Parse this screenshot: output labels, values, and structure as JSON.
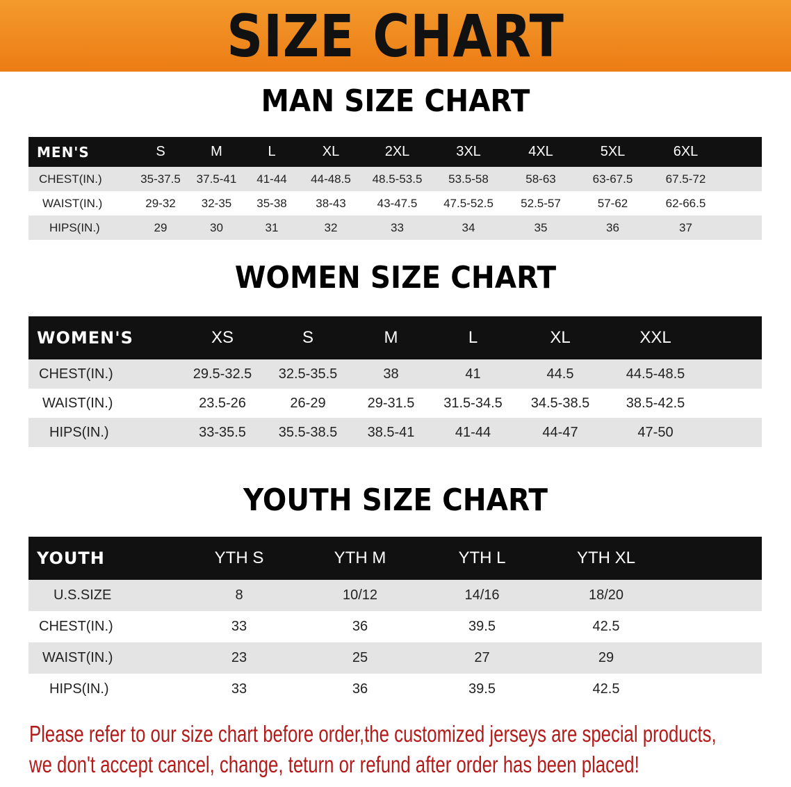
{
  "header": {
    "title": "SIZE CHART",
    "band_color": "#ee8420"
  },
  "men": {
    "title": "MAN SIZE CHART",
    "columns": [
      "MEN'S",
      "S",
      "M",
      "L",
      "XL",
      "2XL",
      "3XL",
      "4XL",
      "5XL",
      "6XL"
    ],
    "rows": [
      [
        "CHEST(IN.)",
        "35-37.5",
        "37.5-41",
        "41-44",
        "44-48.5",
        "48.5-53.5",
        "53.5-58",
        "58-63",
        "63-67.5",
        "67.5-72"
      ],
      [
        "WAIST(IN.)",
        "29-32",
        "32-35",
        "35-38",
        "38-43",
        "43-47.5",
        "47.5-52.5",
        "52.5-57",
        "57-62",
        "62-66.5"
      ],
      [
        "HIPS(IN.)",
        "29",
        "30",
        "31",
        "32",
        "33",
        "34",
        "35",
        "36",
        "37"
      ]
    ]
  },
  "women": {
    "title": "WOMEN SIZE CHART",
    "columns": [
      "WOMEN'S",
      "XS",
      "S",
      "M",
      "L",
      "XL",
      "XXL"
    ],
    "rows": [
      [
        "CHEST(IN.)",
        "29.5-32.5",
        "32.5-35.5",
        "38",
        "41",
        "44.5",
        "44.5-48.5"
      ],
      [
        "WAIST(IN.)",
        "23.5-26",
        "26-29",
        "29-31.5",
        "31.5-34.5",
        "34.5-38.5",
        "38.5-42.5"
      ],
      [
        "HIPS(IN.)",
        "33-35.5",
        "35.5-38.5",
        "38.5-41",
        "41-44",
        "44-47",
        "47-50"
      ]
    ]
  },
  "youth": {
    "title": "YOUTH SIZE CHART",
    "columns": [
      "YOUTH",
      "YTH S",
      "YTH M",
      "YTH L",
      "YTH XL"
    ],
    "rows": [
      [
        "U.S.SIZE",
        "8",
        "10/12",
        "14/16",
        "18/20"
      ],
      [
        "CHEST(IN.)",
        "33",
        "36",
        "39.5",
        "42.5"
      ],
      [
        "WAIST(IN.)",
        "23",
        "25",
        "27",
        "29"
      ],
      [
        "HIPS(IN.)",
        "33",
        "36",
        "39.5",
        "42.5"
      ]
    ]
  },
  "notice": {
    "line1": "Please refer to our size chart before order,the customized jerseys are special products,",
    "line2": "we don't accept cancel, change, teturn or refund after order has been placed!",
    "color": "#b31b1b"
  }
}
